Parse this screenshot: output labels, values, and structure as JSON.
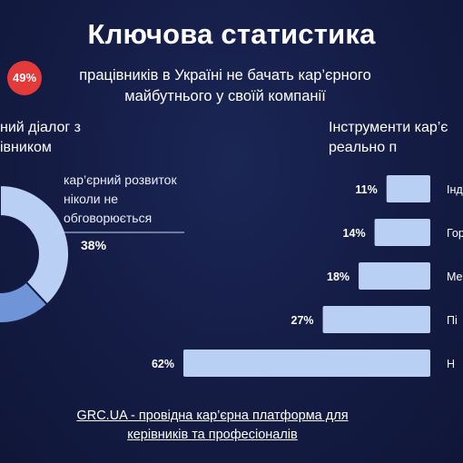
{
  "title": "Ключова статистика",
  "badge": "49%",
  "subtitle": "працівників в Україні не бачать кар’єрного\nмайбутнього у своїй компанії",
  "left_heading": "ний діалог з\nівником",
  "right_heading": "Інструменти кар’є\nреально п",
  "footer": "GRC.UA - провідна кар’єрна платформа для\nкерівників та професіоналів",
  "colors": {
    "background": "#141c44",
    "badge": "#e43a3a",
    "bar": "#b9d0f4",
    "donut_light": "#b9d0f4",
    "donut_mid": "#6f95d8",
    "donut_dark": "#4170c7"
  },
  "chart_data": [
    {
      "type": "pie",
      "segments": [
        {
          "label": "кар’єрний розвиток\nніколи не\nобговорюється",
          "value": 38,
          "display": "38%"
        }
      ]
    },
    {
      "type": "bar",
      "orientation": "horizontal",
      "bars": [
        {
          "value": 11,
          "display": "11%",
          "label": "Інд"
        },
        {
          "value": 14,
          "display": "14%",
          "label": "Гор"
        },
        {
          "value": 18,
          "display": "18%",
          "label": "Ме"
        },
        {
          "value": 27,
          "display": "27%",
          "label": "Пі"
        },
        {
          "value": 62,
          "display": "62%",
          "label": "Н"
        }
      ]
    }
  ]
}
